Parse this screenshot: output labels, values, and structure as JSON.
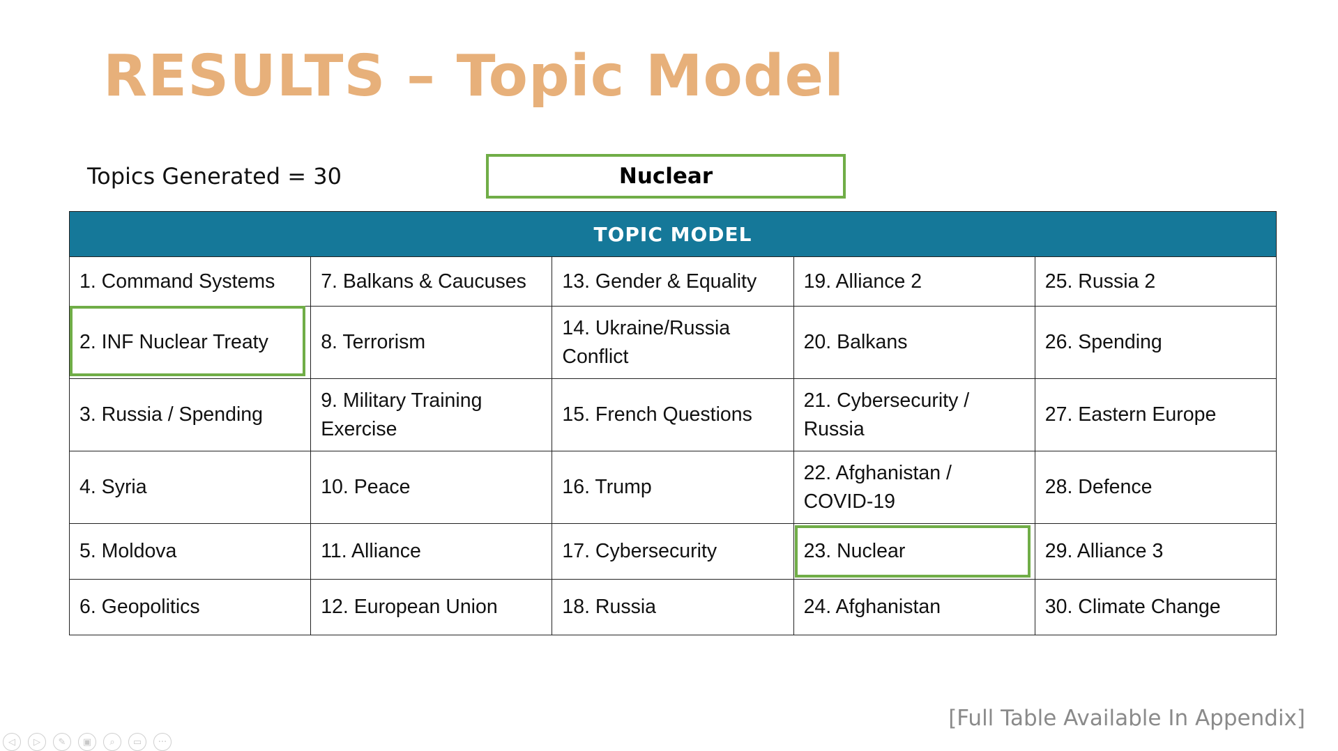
{
  "slide": {
    "title": "RESULTS – Topic Model",
    "topics_generated": "Topics Generated = 30",
    "legend_label": "Nuclear",
    "footnote": "[Full Table Available In Appendix]"
  },
  "table": {
    "header": "TOPIC MODEL",
    "rows": [
      [
        "1. Command Systems",
        "7. Balkans & Caucuses",
        "13. Gender & Equality",
        "19. Alliance 2",
        "25. Russia 2"
      ],
      [
        "2. INF Nuclear Treaty",
        "8. Terrorism",
        "14. Ukraine/Russia Conflict",
        "20. Balkans",
        "26. Spending"
      ],
      [
        "3. Russia / Spending",
        "9. Military Training Exercise",
        "15. French Questions",
        "21. Cybersecurity / Russia",
        "27. Eastern Europe"
      ],
      [
        "4. Syria",
        "10. Peace",
        "16. Trump",
        "22. Afghanistan / COVID-19",
        "28. Defence"
      ],
      [
        "5. Moldova",
        "11. Alliance",
        "17. Cybersecurity",
        "23. Nuclear",
        "29. Alliance 3"
      ],
      [
        "6. Geopolitics",
        "12. European Union",
        "18. Russia",
        "24. Afghanistan",
        "30. Climate Change"
      ]
    ]
  },
  "colors": {
    "title": "#e7b07a",
    "header_bg": "#157899",
    "highlight": "#70ad47",
    "footnote": "#8a8a8a"
  },
  "toolbar": {
    "icons": [
      "previous-icon",
      "next-icon",
      "pen-icon",
      "slides-icon",
      "zoom-icon",
      "subtitles-icon",
      "more-icon"
    ],
    "glyphs": [
      "◁",
      "▷",
      "✎",
      "▣",
      "⌕",
      "▭",
      "···"
    ]
  }
}
